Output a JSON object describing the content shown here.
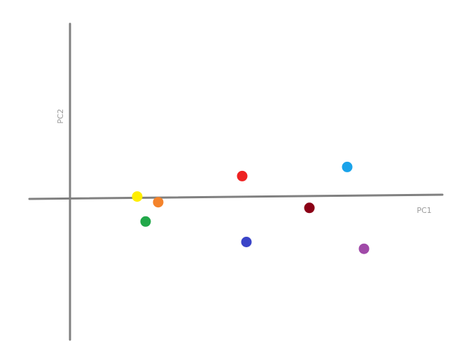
{
  "chart_data": {
    "type": "scatter",
    "title": "",
    "xlabel": "PC1",
    "ylabel": "PC2",
    "xlim": [
      -1.0,
      8.9
    ],
    "ylim": [
      -6.0,
      7.9
    ],
    "grid": false,
    "legend": "none",
    "points": [
      {
        "x": 1.6,
        "y": 0.3,
        "color": "#ffee00"
      },
      {
        "x": 2.1,
        "y": 0.05,
        "color": "#f4832b"
      },
      {
        "x": 1.8,
        "y": -0.8,
        "color": "#22a84a"
      },
      {
        "x": 4.1,
        "y": 1.2,
        "color": "#ee2222"
      },
      {
        "x": 4.2,
        "y": -1.7,
        "color": "#3a44c8"
      },
      {
        "x": 5.7,
        "y": -0.2,
        "color": "#8b0016"
      },
      {
        "x": 6.6,
        "y": 1.6,
        "color": "#1aa3ea"
      },
      {
        "x": 7.0,
        "y": -2.0,
        "color": "#a04aa8"
      }
    ]
  }
}
